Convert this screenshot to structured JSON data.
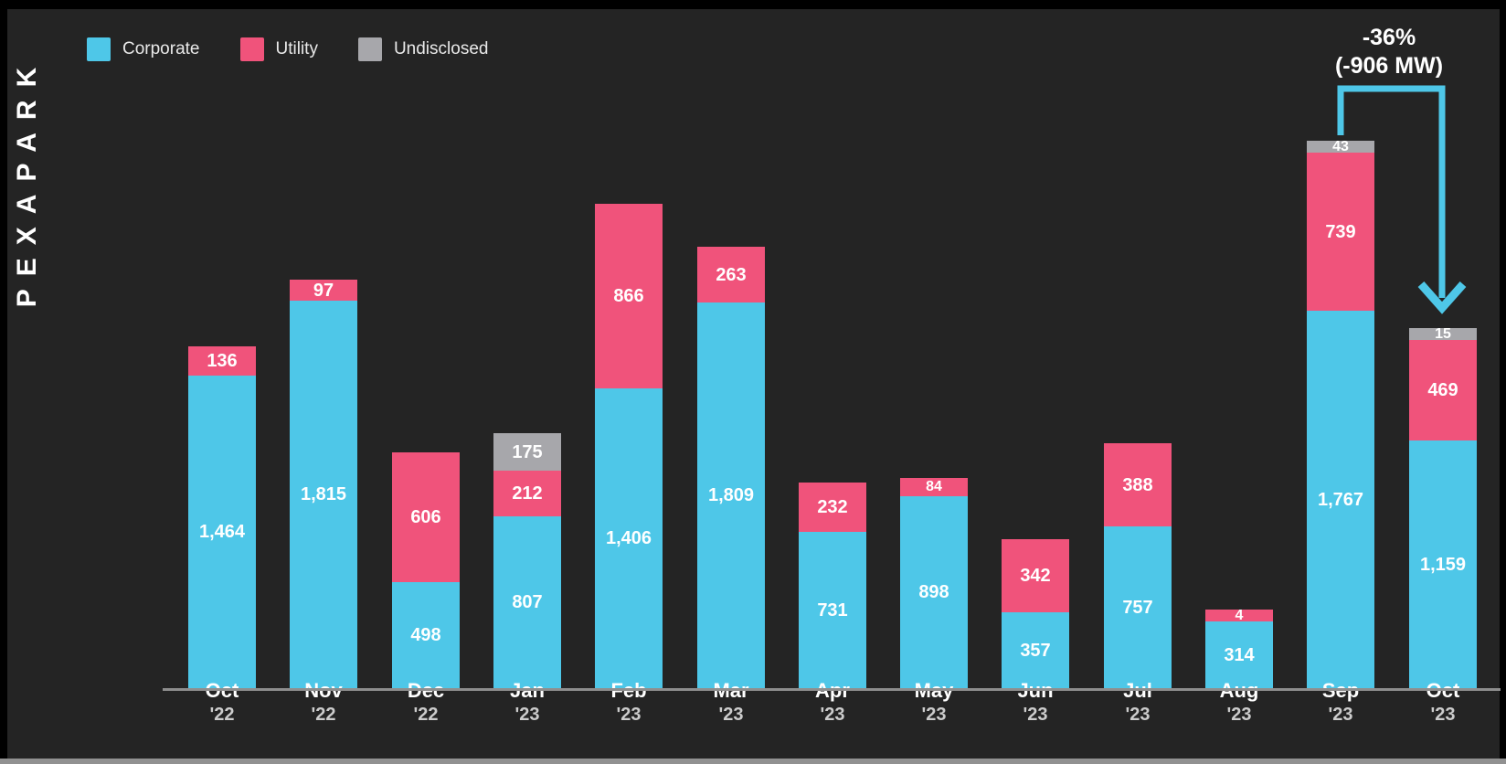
{
  "branding": {
    "logo_text": "PEXAPARK"
  },
  "legend": {
    "items": [
      {
        "label": "Corporate",
        "key": "corporate"
      },
      {
        "label": "Utility",
        "key": "utility"
      },
      {
        "label": "Undisclosed",
        "key": "undisclosed"
      }
    ]
  },
  "colors": {
    "corporate": "#4EC7E8",
    "utility": "#F0537B",
    "undisclosed": "#A7A7AB",
    "background": "#242424",
    "frame": "#000000",
    "axis_line": "#8E8E8E",
    "bottom_strip": "#919191",
    "value_text": "#FFFFFF",
    "legend_text": "#E9E9E9",
    "year_text": "#CCCCCC",
    "arrow": "#4EC7E8"
  },
  "annotation": {
    "line1": "-36%",
    "line2": "(-906 MW)",
    "from_category": "Sep '23",
    "to_category": "Oct '23"
  },
  "chart_data": {
    "type": "bar",
    "stacked": true,
    "title": "",
    "legend_position": "top-left",
    "value_axis": "hidden",
    "grid": false,
    "value_labels_visible": true,
    "categories": [
      "Oct '22",
      "Nov '22",
      "Dec '22",
      "Jan '23",
      "Feb '23",
      "Mar '23",
      "Apr '23",
      "May '23",
      "Jun '23",
      "Jul '23",
      "Aug '23",
      "Sep '23",
      "Oct '23"
    ],
    "category_labels": [
      {
        "month": "Oct",
        "year": "'22"
      },
      {
        "month": "Nov",
        "year": "'22"
      },
      {
        "month": "Dec",
        "year": "'22"
      },
      {
        "month": "Jan",
        "year": "'23"
      },
      {
        "month": "Feb",
        "year": "'23"
      },
      {
        "month": "Mar",
        "year": "'23"
      },
      {
        "month": "Apr",
        "year": "'23"
      },
      {
        "month": "May",
        "year": "'23"
      },
      {
        "month": "Jun",
        "year": "'23"
      },
      {
        "month": "Jul",
        "year": "'23"
      },
      {
        "month": "Aug",
        "year": "'23"
      },
      {
        "month": "Sep",
        "year": "'23"
      },
      {
        "month": "Oct",
        "year": "'23"
      }
    ],
    "series": [
      {
        "name": "Corporate",
        "color": "#4EC7E8",
        "values": [
          1464,
          1815,
          498,
          807,
          1406,
          1809,
          731,
          898,
          357,
          757,
          314,
          1767,
          1159
        ]
      },
      {
        "name": "Utility",
        "color": "#F0537B",
        "values": [
          136,
          97,
          606,
          212,
          866,
          263,
          232,
          84,
          342,
          388,
          4,
          739,
          469
        ]
      },
      {
        "name": "Undisclosed",
        "color": "#A7A7AB",
        "values": [
          0,
          0,
          0,
          175,
          0,
          0,
          0,
          0,
          0,
          0,
          0,
          43,
          15
        ]
      }
    ]
  }
}
